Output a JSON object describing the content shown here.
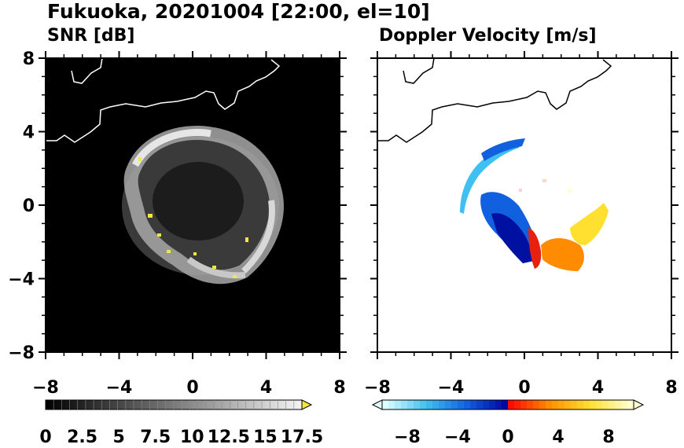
{
  "figure": {
    "title": "Fukuoka, 20201004 [22:00, el=10]"
  },
  "chart_data": [
    {
      "type": "heatmap",
      "title": "SNR [dB]",
      "xlim": [
        -8,
        8
      ],
      "ylim": [
        -8,
        8
      ],
      "xticks": [
        "−8",
        "−4",
        "0",
        "4",
        "8"
      ],
      "yticks": [
        "8",
        "4",
        "0",
        "−4",
        "−8"
      ],
      "background": "#000000",
      "colorbar": {
        "levels": [
          0,
          17.5
        ],
        "labels": [
          "0",
          "2.5",
          "5",
          "7.5",
          "10",
          "12.5",
          "15",
          "17.5"
        ],
        "colors": [
          "#000000",
          "#ffffff"
        ],
        "overflow_color": "#f0e840",
        "extend": "max"
      },
      "echo_region": {
        "center": [
          0,
          0
        ],
        "radius_range": [
          3.5,
          5.2
        ]
      }
    },
    {
      "type": "heatmap",
      "title": "Doppler Velocity [m/s]",
      "xlim": [
        -8,
        8
      ],
      "ylim": [
        -8,
        8
      ],
      "xticks": [
        "−8",
        "−4",
        "0",
        "4",
        "8"
      ],
      "yticks": [
        "8",
        "4",
        "0",
        "−4",
        "−8"
      ],
      "background": "#ffffff",
      "colorbar": {
        "range": [
          -10,
          10
        ],
        "labels": [
          "−8",
          "−4",
          "0",
          "4",
          "8"
        ],
        "colors": [
          "#e0ffff",
          "#40c0f0",
          "#1060e0",
          "#0000a0",
          "#ff0000",
          "#ff8c00",
          "#ffe030",
          "#ffffd0"
        ],
        "extend": "both"
      }
    }
  ]
}
